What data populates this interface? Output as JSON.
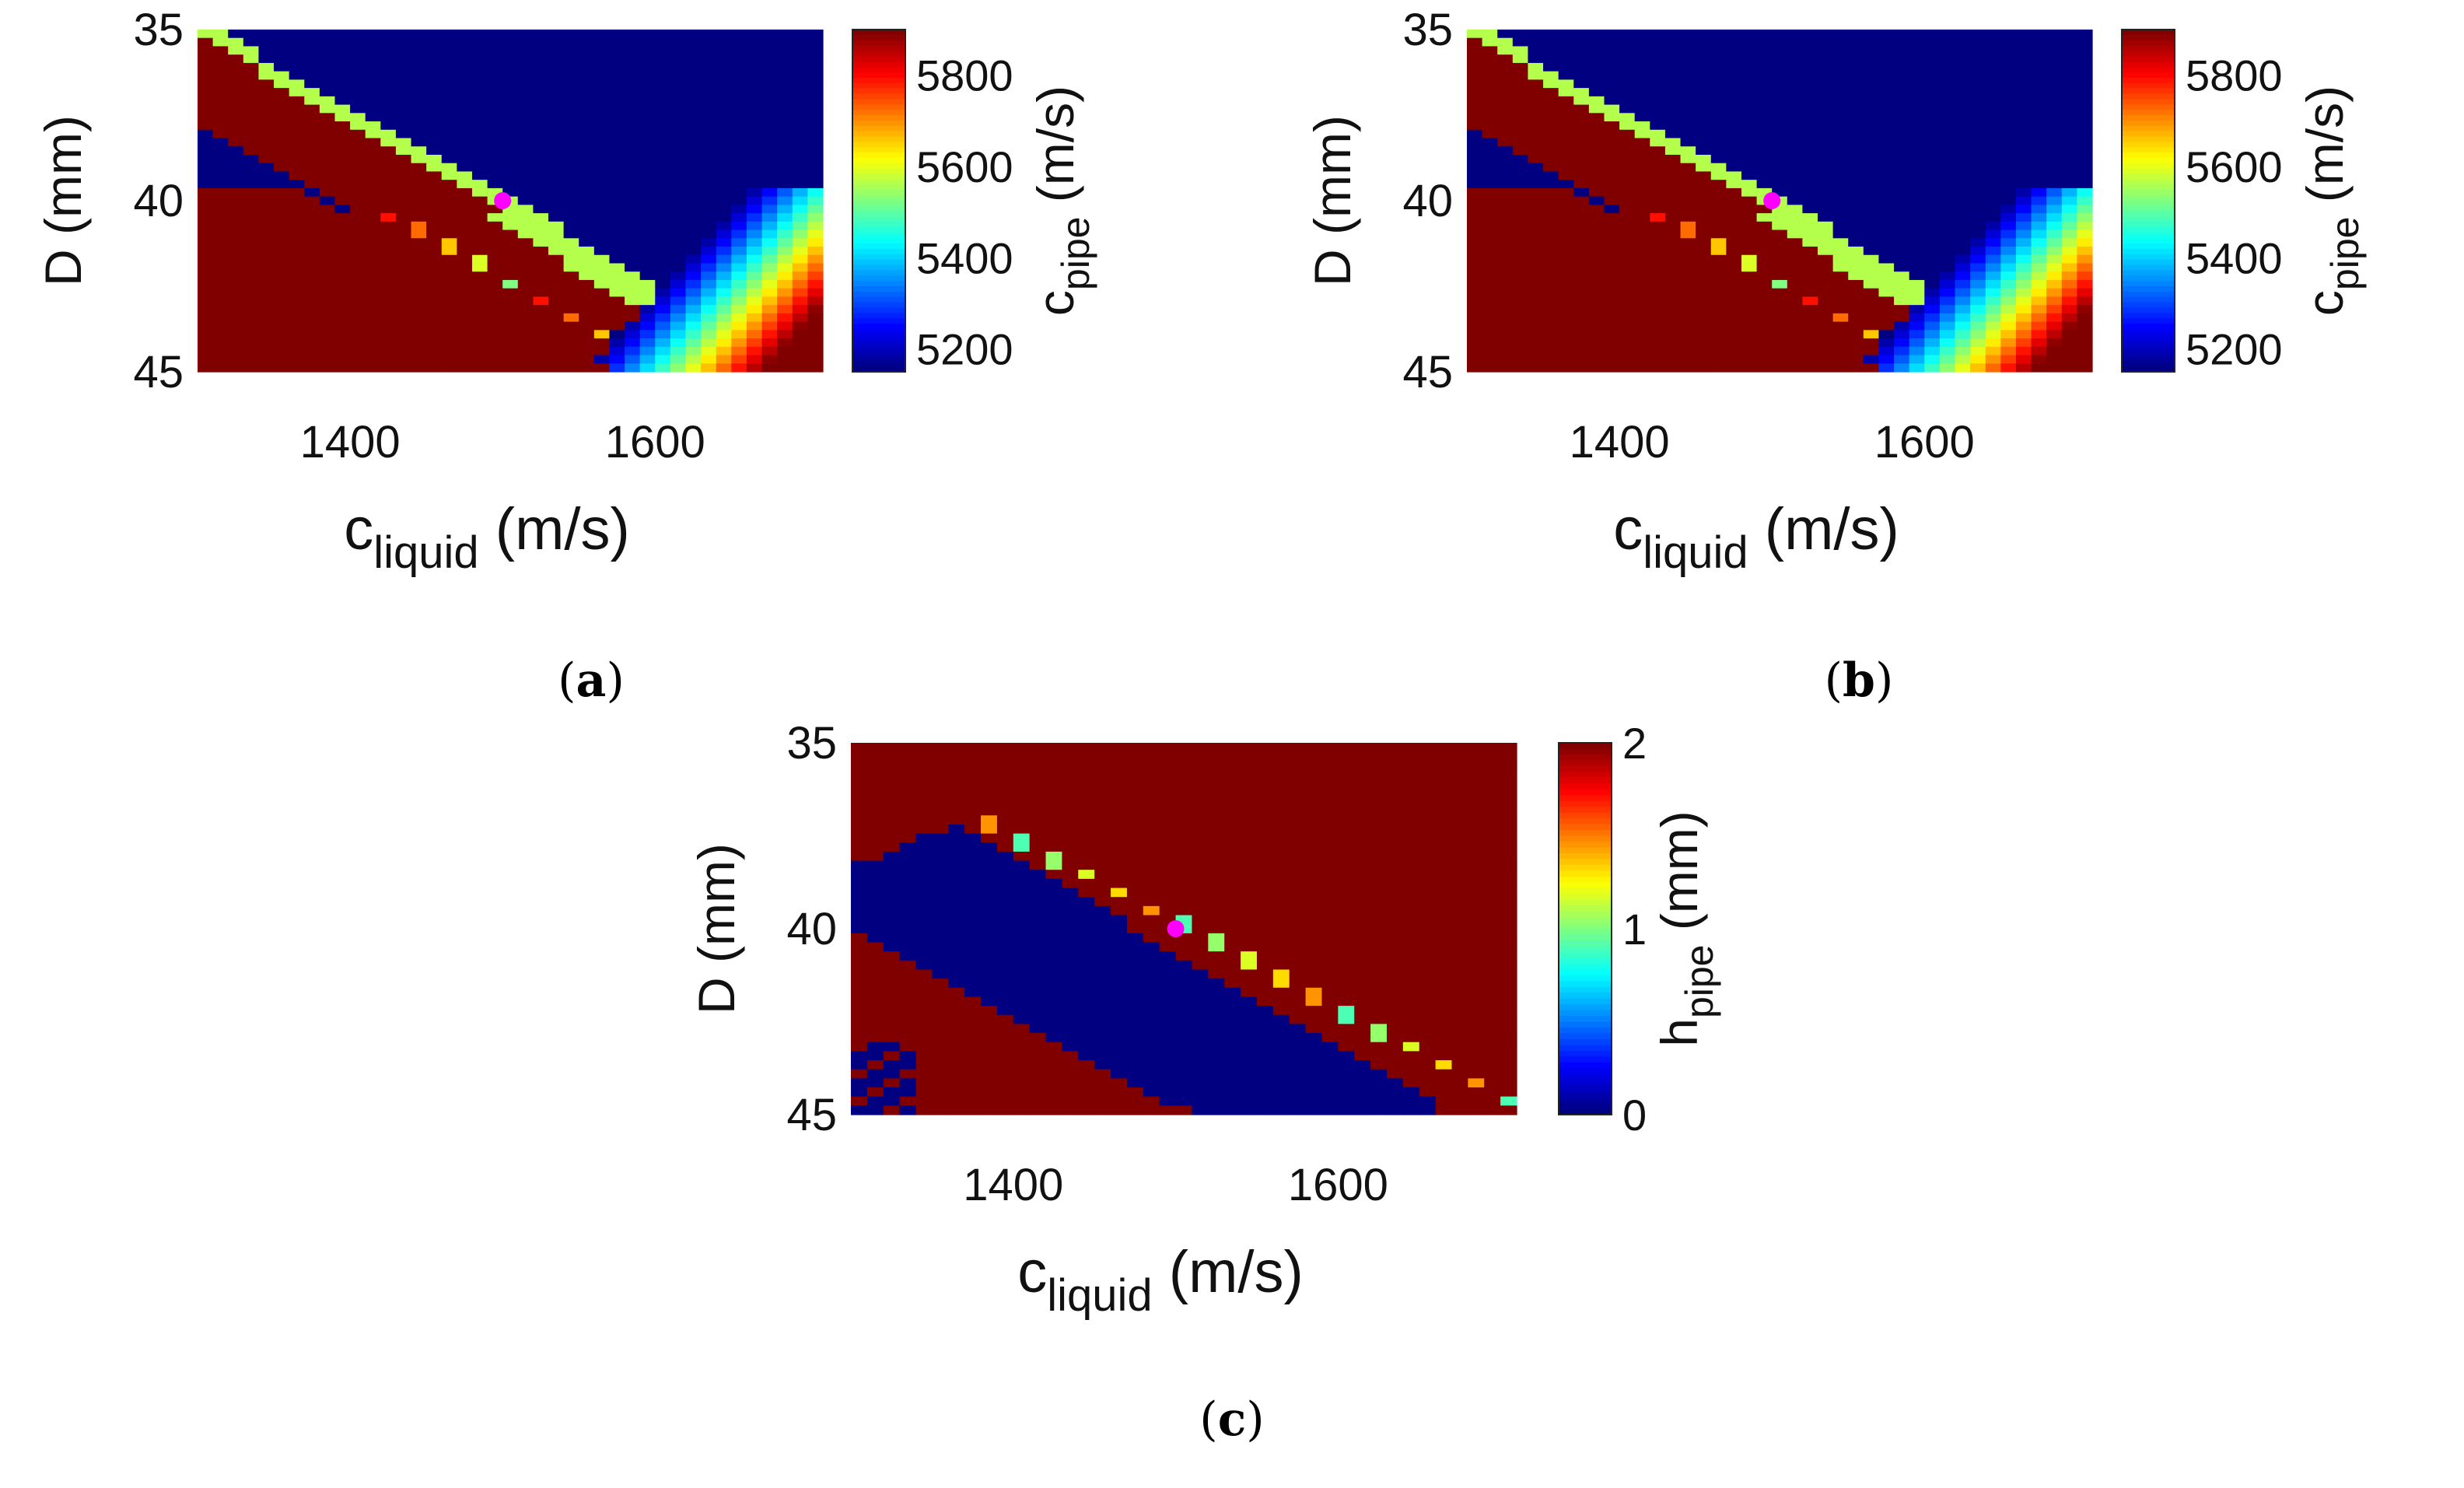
{
  "chart_data": [
    {
      "id": "a",
      "type": "heatmap",
      "caption_letter": "a",
      "xlabel_main": "c",
      "xlabel_sub": "liquid",
      "xlabel_unit": " (m/s)",
      "ylabel": "D (mm)",
      "xlim": [
        1300,
        1710
      ],
      "ylim": [
        35,
        45
      ],
      "xticks": [
        1400,
        1600
      ],
      "yticks": [
        35,
        40,
        45
      ],
      "colorbar": {
        "label_main": "c",
        "label_sub": "pipe",
        "label_unit": " (m/s)",
        "range": [
          5150,
          5900
        ],
        "ticks": [
          5200,
          5400,
          5600,
          5800
        ],
        "colormap": "jet"
      },
      "marker": {
        "x": 1500,
        "y": 40,
        "color": "#ff00ff"
      }
    },
    {
      "id": "b",
      "type": "heatmap",
      "caption_letter": "b",
      "xlabel_main": "c",
      "xlabel_sub": "liquid",
      "xlabel_unit": " (m/s)",
      "ylabel": "D (mm)",
      "xlim": [
        1300,
        1710
      ],
      "ylim": [
        35,
        45
      ],
      "xticks": [
        1400,
        1600
      ],
      "yticks": [
        35,
        40,
        45
      ],
      "colorbar": {
        "label_main": "c",
        "label_sub": "pipe",
        "label_unit": " (m/s)",
        "range": [
          5150,
          5900
        ],
        "ticks": [
          5200,
          5400,
          5600,
          5800
        ],
        "colormap": "jet"
      },
      "marker": {
        "x": 1500,
        "y": 40,
        "color": "#ff00ff"
      }
    },
    {
      "id": "c",
      "type": "heatmap",
      "caption_letter": "c",
      "xlabel_main": "c",
      "xlabel_sub": "liquid",
      "xlabel_unit": " (m/s)",
      "ylabel": "D (mm)",
      "xlim": [
        1300,
        1710
      ],
      "ylim": [
        35,
        45
      ],
      "xticks": [
        1400,
        1600
      ],
      "yticks": [
        35,
        40,
        45
      ],
      "colorbar": {
        "label_main": "h",
        "label_sub": "pipe",
        "label_unit": " (mm)",
        "range": [
          0,
          2
        ],
        "ticks": [
          0,
          1,
          2
        ],
        "colormap": "jet"
      },
      "marker": {
        "x": 1500,
        "y": 40,
        "color": "#ff00ff"
      }
    }
  ]
}
